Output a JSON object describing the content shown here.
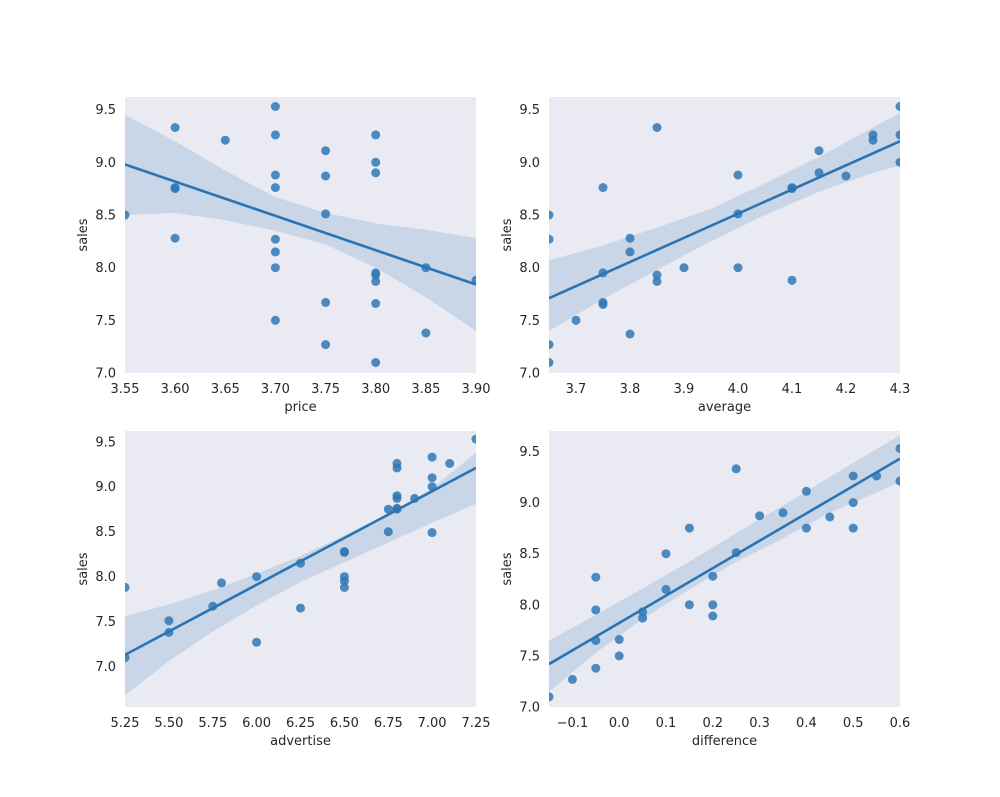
{
  "colors": {
    "background": "#EAEAF2",
    "point": "#2F78B5",
    "line": "#2A74B3",
    "band": "#B9CDE3"
  },
  "chart_data": [
    {
      "type": "scatter",
      "xlabel": "price",
      "ylabel": "sales",
      "xlim": [
        3.55,
        3.9
      ],
      "ylim": [
        7.0,
        9.62
      ],
      "xticks": [
        "3.55",
        "3.60",
        "3.65",
        "3.70",
        "3.75",
        "3.80",
        "3.85",
        "3.90"
      ],
      "yticks": [
        "7.0",
        "7.5",
        "8.0",
        "8.5",
        "9.0",
        "9.5"
      ],
      "points": [
        [
          3.55,
          8.5
        ],
        [
          3.6,
          9.33
        ],
        [
          3.6,
          8.76
        ],
        [
          3.6,
          8.75
        ],
        [
          3.6,
          8.28
        ],
        [
          3.65,
          9.21
        ],
        [
          3.7,
          9.53
        ],
        [
          3.7,
          9.26
        ],
        [
          3.7,
          8.88
        ],
        [
          3.7,
          8.76
        ],
        [
          3.7,
          8.27
        ],
        [
          3.7,
          8.15
        ],
        [
          3.7,
          8.0
        ],
        [
          3.7,
          7.5
        ],
        [
          3.75,
          9.11
        ],
        [
          3.75,
          8.87
        ],
        [
          3.75,
          8.51
        ],
        [
          3.75,
          7.67
        ],
        [
          3.75,
          7.27
        ],
        [
          3.8,
          9.26
        ],
        [
          3.8,
          9.0
        ],
        [
          3.8,
          8.9
        ],
        [
          3.8,
          7.95
        ],
        [
          3.8,
          7.93
        ],
        [
          3.8,
          7.87
        ],
        [
          3.8,
          7.66
        ],
        [
          3.8,
          7.1
        ],
        [
          3.85,
          8.0
        ],
        [
          3.85,
          7.38
        ],
        [
          3.9,
          7.88
        ]
      ],
      "regression": {
        "x": [
          3.55,
          3.9
        ],
        "y": [
          8.98,
          7.84
        ]
      },
      "ci": {
        "x": [
          3.55,
          3.6,
          3.65,
          3.7,
          3.75,
          3.8,
          3.85,
          3.9
        ],
        "lower": [
          8.5,
          8.52,
          8.45,
          8.35,
          8.22,
          8.0,
          7.72,
          7.4
        ],
        "upper": [
          9.45,
          9.2,
          8.92,
          8.67,
          8.52,
          8.42,
          8.36,
          8.28
        ]
      }
    },
    {
      "type": "scatter",
      "xlabel": "average",
      "ylabel": "sales",
      "xlim": [
        3.65,
        4.3
      ],
      "ylim": [
        7.0,
        9.62
      ],
      "xticks": [
        "3.7",
        "3.8",
        "3.9",
        "4.0",
        "4.1",
        "4.2",
        "4.3"
      ],
      "yticks": [
        "7.0",
        "7.5",
        "8.0",
        "8.5",
        "9.0",
        "9.5"
      ],
      "points": [
        [
          3.65,
          8.5
        ],
        [
          3.65,
          8.27
        ],
        [
          3.65,
          7.27
        ],
        [
          3.65,
          7.1
        ],
        [
          3.7,
          7.5
        ],
        [
          3.75,
          8.76
        ],
        [
          3.75,
          7.95
        ],
        [
          3.75,
          7.67
        ],
        [
          3.75,
          7.65
        ],
        [
          3.8,
          8.28
        ],
        [
          3.8,
          8.15
        ],
        [
          3.8,
          7.37
        ],
        [
          3.85,
          9.33
        ],
        [
          3.85,
          7.93
        ],
        [
          3.85,
          7.87
        ],
        [
          3.9,
          8.0
        ],
        [
          4.0,
          8.88
        ],
        [
          4.0,
          8.51
        ],
        [
          4.0,
          8.0
        ],
        [
          4.1,
          8.76
        ],
        [
          4.1,
          8.75
        ],
        [
          4.1,
          7.88
        ],
        [
          4.15,
          9.11
        ],
        [
          4.15,
          8.9
        ],
        [
          4.2,
          8.87
        ],
        [
          4.25,
          9.26
        ],
        [
          4.25,
          9.21
        ],
        [
          4.3,
          9.53
        ],
        [
          4.3,
          9.26
        ],
        [
          4.3,
          9.0
        ]
      ],
      "regression": {
        "x": [
          3.65,
          4.3
        ],
        "y": [
          7.71,
          9.2
        ]
      },
      "ci": {
        "x": [
          3.65,
          3.75,
          3.85,
          3.95,
          4.05,
          4.15,
          4.25,
          4.3
        ],
        "lower": [
          7.4,
          7.7,
          7.98,
          8.25,
          8.5,
          8.72,
          8.9,
          8.97
        ],
        "upper": [
          8.07,
          8.21,
          8.38,
          8.56,
          8.8,
          9.05,
          9.33,
          9.47
        ]
      }
    },
    {
      "type": "scatter",
      "xlabel": "advertise",
      "ylabel": "sales",
      "xlim": [
        5.25,
        7.25
      ],
      "ylim": [
        6.55,
        9.62
      ],
      "xticks": [
        "5.25",
        "5.50",
        "5.75",
        "6.00",
        "6.25",
        "6.50",
        "6.75",
        "7.00",
        "7.25"
      ],
      "yticks": [
        "7.0",
        "7.5",
        "8.0",
        "8.5",
        "9.0",
        "9.5"
      ],
      "points": [
        [
          5.25,
          7.88
        ],
        [
          5.25,
          7.1
        ],
        [
          5.5,
          7.51
        ],
        [
          5.5,
          7.38
        ],
        [
          5.75,
          7.67
        ],
        [
          5.8,
          7.93
        ],
        [
          6.0,
          8.0
        ],
        [
          6.0,
          7.27
        ],
        [
          6.25,
          8.15
        ],
        [
          6.25,
          7.65
        ],
        [
          6.5,
          8.28
        ],
        [
          6.5,
          8.27
        ],
        [
          6.5,
          8.0
        ],
        [
          6.5,
          7.95
        ],
        [
          6.5,
          7.88
        ],
        [
          6.75,
          8.75
        ],
        [
          6.75,
          8.5
        ],
        [
          6.8,
          9.26
        ],
        [
          6.8,
          9.21
        ],
        [
          6.8,
          8.9
        ],
        [
          6.8,
          8.87
        ],
        [
          6.8,
          8.76
        ],
        [
          6.8,
          8.75
        ],
        [
          6.9,
          8.87
        ],
        [
          7.0,
          9.33
        ],
        [
          7.0,
          9.1
        ],
        [
          7.0,
          9.0
        ],
        [
          7.0,
          8.49
        ],
        [
          7.1,
          9.26
        ],
        [
          7.25,
          9.53
        ]
      ],
      "regression": {
        "x": [
          5.25,
          7.25
        ],
        "y": [
          7.13,
          9.21
        ]
      },
      "ci": {
        "x": [
          5.25,
          5.5,
          5.75,
          6.0,
          6.25,
          6.5,
          6.75,
          7.0,
          7.25
        ],
        "lower": [
          6.68,
          7.06,
          7.39,
          7.68,
          7.94,
          8.16,
          8.38,
          8.6,
          8.81
        ],
        "upper": [
          7.56,
          7.69,
          7.85,
          8.03,
          8.23,
          8.46,
          8.7,
          8.98,
          9.38
        ]
      }
    },
    {
      "type": "scatter",
      "xlabel": "difference",
      "ylabel": "sales",
      "xlim": [
        -0.15,
        0.6
      ],
      "ylim": [
        7.0,
        9.7
      ],
      "xticks": [
        "−0.1",
        "0.0",
        "0.1",
        "0.2",
        "0.3",
        "0.4",
        "0.5",
        "0.6"
      ],
      "xtick_values": [
        -0.1,
        0.0,
        0.1,
        0.2,
        0.3,
        0.4,
        0.5,
        0.6
      ],
      "yticks": [
        "7.0",
        "7.5",
        "8.0",
        "8.5",
        "9.0",
        "9.5"
      ],
      "points": [
        [
          -0.15,
          7.1
        ],
        [
          -0.1,
          7.27
        ],
        [
          -0.05,
          8.27
        ],
        [
          -0.05,
          7.95
        ],
        [
          -0.05,
          7.65
        ],
        [
          -0.05,
          7.38
        ],
        [
          0.0,
          7.66
        ],
        [
          0.0,
          7.5
        ],
        [
          0.05,
          7.93
        ],
        [
          0.05,
          7.87
        ],
        [
          0.1,
          8.5
        ],
        [
          0.1,
          8.15
        ],
        [
          0.15,
          8.75
        ],
        [
          0.15,
          8.0
        ],
        [
          0.2,
          8.28
        ],
        [
          0.2,
          8.0
        ],
        [
          0.2,
          7.89
        ],
        [
          0.25,
          9.33
        ],
        [
          0.25,
          8.51
        ],
        [
          0.3,
          8.87
        ],
        [
          0.35,
          8.9
        ],
        [
          0.4,
          9.11
        ],
        [
          0.4,
          8.75
        ],
        [
          0.45,
          8.86
        ],
        [
          0.5,
          9.26
        ],
        [
          0.5,
          9.0
        ],
        [
          0.5,
          8.75
        ],
        [
          0.55,
          9.26
        ],
        [
          0.6,
          9.53
        ],
        [
          0.6,
          9.21
        ]
      ],
      "regression": {
        "x": [
          -0.15,
          0.6
        ],
        "y": [
          7.42,
          9.43
        ]
      },
      "ci": {
        "x": [
          -0.15,
          -0.05,
          0.05,
          0.15,
          0.25,
          0.35,
          0.45,
          0.6
        ],
        "lower": [
          7.15,
          7.53,
          7.86,
          8.15,
          8.42,
          8.65,
          8.9,
          9.2
        ],
        "upper": [
          7.65,
          7.9,
          8.16,
          8.42,
          8.7,
          8.97,
          9.25,
          9.66
        ]
      }
    }
  ]
}
